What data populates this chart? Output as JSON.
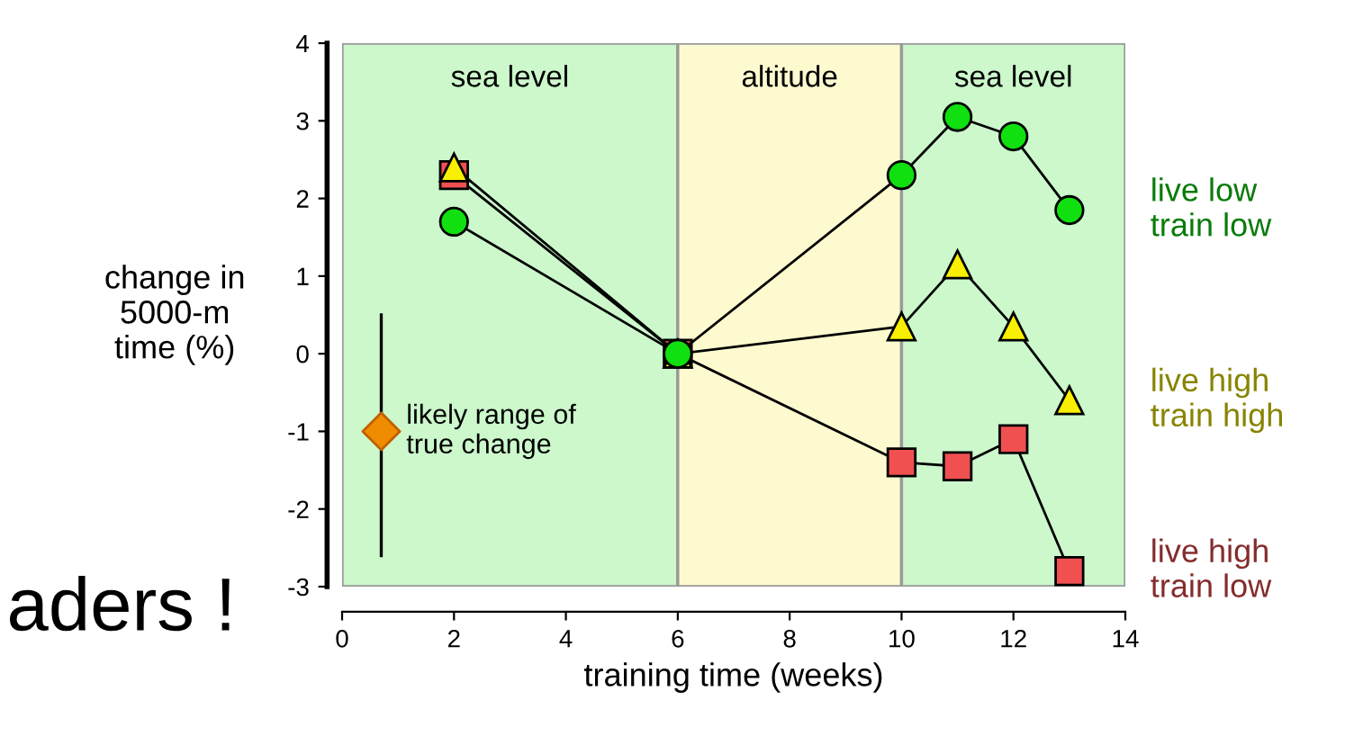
{
  "chart_data": {
    "type": "line",
    "xlabel": "training time (weeks)",
    "ylabel": "change in\n5000-m\ntime (%)",
    "xlim": [
      0,
      14
    ],
    "xticks": [
      0,
      2,
      4,
      6,
      8,
      10,
      12,
      14
    ],
    "ylim": [
      -3,
      4
    ],
    "yticks": [
      -3,
      -2,
      -1,
      0,
      1,
      2,
      3,
      4
    ],
    "grid": false,
    "legend": false,
    "bands": [
      {
        "axis": "x",
        "from": 0,
        "to": 6,
        "label": "sea level",
        "color": "#ccf8cc"
      },
      {
        "axis": "x",
        "from": 6,
        "to": 10,
        "label": "altitude",
        "color": "#fefad0"
      },
      {
        "axis": "x",
        "from": 10,
        "to": 14,
        "label": "sea level",
        "color": "#ccf8cc"
      }
    ],
    "series": [
      {
        "name": "live low\ntrain low",
        "color": "#10e010",
        "marker": "circle",
        "x": [
          2,
          6,
          10,
          11,
          12,
          13
        ],
        "values": [
          1.7,
          0,
          2.3,
          3.05,
          2.8,
          1.85
        ]
      },
      {
        "name": "live high\ntrain high",
        "color": "#f8f000",
        "marker": "triangle",
        "x": [
          2,
          6,
          10,
          11,
          12,
          13
        ],
        "values": [
          2.4,
          0,
          0.35,
          1.15,
          0.35,
          -0.6
        ]
      },
      {
        "name": "live high\ntrain low",
        "color": "#f05050",
        "marker": "square",
        "x": [
          2,
          6,
          10,
          11,
          12,
          13
        ],
        "values": [
          2.3,
          0,
          -1.4,
          -1.45,
          -1.1,
          -2.8
        ]
      },
      {
        "name": "likely range of\ntrue change",
        "type": "scatter",
        "color": "#f08c00",
        "marker": "diamond",
        "x": [
          0.7
        ],
        "values": [
          -1
        ],
        "errors": [
          [
            -2.6,
            0.5
          ]
        ]
      }
    ],
    "annotations": [
      "aders !"
    ]
  }
}
